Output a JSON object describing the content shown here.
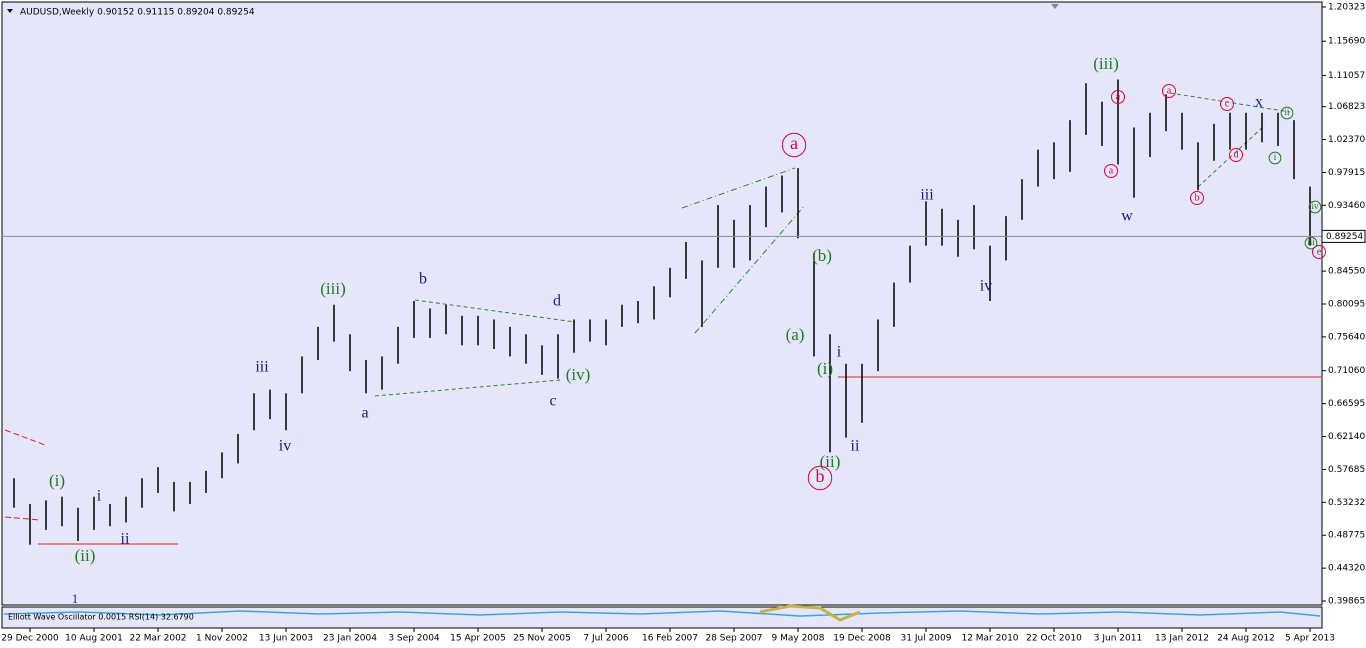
{
  "chart_data": {
    "type": "hilo",
    "title": "AUDUSD,Weekly  0.90152 0.91115 0.89204 0.89254",
    "indicator": "Elliott Wave Oscillator 0.0015  RSI(14) 32.6790",
    "color": "#000000",
    "categories": [
      null,
      "29 Dec 2000",
      null,
      null,
      null,
      "10 Aug 2001",
      null,
      null,
      null,
      "22 Mar 2002",
      null,
      null,
      null,
      "1 Nov 2002",
      null,
      null,
      null,
      "13 Jun 2003",
      null,
      null,
      null,
      "23 Jan 2004",
      null,
      null,
      null,
      "3 Sep 2004",
      null,
      null,
      null,
      "15 Apr 2005",
      null,
      null,
      null,
      "25 Nov 2005",
      null,
      null,
      null,
      "7 Jul 2006",
      null,
      null,
      null,
      "16 Feb 2007",
      null,
      null,
      null,
      "28 Sep 2007",
      null,
      null,
      null,
      "9 May 2008",
      null,
      null,
      null,
      "19 Dec 2008",
      null,
      null,
      null,
      "31 Jul 2009",
      null,
      null,
      null,
      "12 Mar 2010",
      null,
      null,
      null,
      "22 Oct 2010",
      null,
      null,
      null,
      "3 Jun 2011",
      null,
      null,
      null,
      "13 Jan 2012",
      null,
      null,
      null,
      "24 Aug 2012",
      null,
      null,
      null,
      "5 Apr 2013"
    ],
    "high": [
      0.565,
      0.53,
      0.535,
      0.54,
      0.525,
      0.54,
      0.53,
      0.54,
      0.565,
      0.58,
      0.56,
      0.56,
      0.575,
      0.6,
      0.625,
      0.68,
      0.685,
      0.68,
      0.73,
      0.77,
      0.8,
      0.76,
      0.725,
      0.73,
      0.77,
      0.805,
      0.795,
      0.8,
      0.785,
      0.785,
      0.78,
      0.77,
      0.76,
      0.745,
      0.76,
      0.78,
      0.78,
      0.78,
      0.8,
      0.805,
      0.825,
      0.85,
      0.885,
      0.86,
      0.935,
      0.915,
      0.935,
      0.96,
      0.975,
      0.985,
      0.87,
      0.76,
      0.72,
      0.72,
      0.78,
      0.83,
      0.88,
      0.94,
      0.93,
      0.915,
      0.935,
      0.88,
      0.92,
      0.97,
      1.01,
      1.02,
      1.05,
      1.1,
      1.075,
      1.105,
      1.04,
      1.06,
      1.085,
      1.06,
      1.02,
      1.045,
      1.06,
      1.06,
      1.06,
      1.06,
      1.05,
      0.96
    ],
    "low": [
      0.525,
      0.475,
      0.495,
      0.5,
      0.48,
      0.495,
      0.5,
      0.505,
      0.525,
      0.545,
      0.52,
      0.53,
      0.545,
      0.565,
      0.585,
      0.63,
      0.645,
      0.63,
      0.68,
      0.725,
      0.75,
      0.71,
      0.68,
      0.685,
      0.72,
      0.755,
      0.755,
      0.76,
      0.745,
      0.745,
      0.74,
      0.73,
      0.72,
      0.705,
      0.7,
      0.735,
      0.75,
      0.745,
      0.77,
      0.775,
      0.78,
      0.81,
      0.835,
      0.77,
      0.85,
      0.85,
      0.86,
      0.905,
      0.925,
      0.89,
      0.73,
      0.6,
      0.62,
      0.64,
      0.71,
      0.77,
      0.83,
      0.88,
      0.88,
      0.865,
      0.875,
      0.805,
      0.86,
      0.915,
      0.96,
      0.97,
      0.98,
      1.03,
      1.015,
      0.99,
      0.945,
      1.0,
      1.035,
      1.01,
      0.955,
      0.995,
      1.01,
      1.01,
      1.02,
      1.015,
      0.97,
      0.88
    ],
    "ylim": [
      0.39326,
      1.21
    ],
    "yticks": [
      1.20323,
      {
        "value": 1.1569,
        "label": "1.15690"
      },
      1.11057,
      1.06823,
      {
        "value": 1.0237,
        "label": "1.02370"
      },
      0.97915,
      {
        "value": 0.9346,
        "label": "0.93460"
      },
      {
        "value": 0.8455,
        "label": "0.84550"
      },
      0.80095,
      {
        "value": 0.7564,
        "label": "0.75640"
      },
      {
        "value": 0.7106,
        "label": "0.71060"
      },
      0.66595,
      {
        "value": 0.6214,
        "label": "0.62140"
      },
      0.57685,
      0.53232,
      0.48775,
      {
        "value": 0.4432,
        "label": "0.44320"
      },
      0.39865
    ],
    "last_price": 0.89254,
    "annotations": [
      {
        "text": "(i)",
        "color": "#1e7a1e"
      },
      {
        "text": "(ii)",
        "color": "#1e7a1e"
      },
      {
        "text": "(iii)",
        "color": "#1e7a1e"
      },
      {
        "text": "(iv)",
        "color": "#1e7a1e"
      },
      {
        "text": "(a)",
        "color": "#1e7a1e"
      },
      {
        "text": "(b)",
        "color": "#1e7a1e"
      },
      {
        "text": "(i)",
        "color": "#1e7a1e"
      },
      {
        "text": "(ii)",
        "color": "#1e7a1e"
      },
      {
        "text": "(iii)",
        "color": "#1e7a1e"
      },
      {
        "text": "i",
        "color": "#1c1c7c"
      },
      {
        "text": "ii",
        "color": "#1c1c7c"
      },
      {
        "text": "iii",
        "color": "#1c1c7c"
      },
      {
        "text": "iv",
        "color": "#1c1c7c"
      },
      {
        "text": "b",
        "color": "#1c1c7c"
      },
      {
        "text": "a",
        "color": "#1c1c7c"
      },
      {
        "text": "d",
        "color": "#1c1c7c"
      },
      {
        "text": "c",
        "color": "#1c1c7c"
      },
      {
        "text": "i",
        "color": "#1c1c7c"
      },
      {
        "text": "ii",
        "color": "#1c1c7c"
      },
      {
        "text": "iii",
        "color": "#1c1c7c"
      },
      {
        "text": "iv",
        "color": "#1c1c7c"
      },
      {
        "text": "w",
        "color": "#1c1c7c"
      },
      {
        "text": "x",
        "color": "#1c1c7c"
      },
      {
        "text": "1",
        "color": "#1c1c7c"
      },
      {
        "text": "a",
        "color": "#e0003c",
        "circled": true
      },
      {
        "text": "b",
        "color": "#e0003c",
        "circled": true
      },
      {
        "text": "a",
        "color": "#e0003c",
        "circled": true
      },
      {
        "text": "a",
        "color": "#e0003c",
        "circled": true
      },
      {
        "text": "a",
        "color": "#e0003c",
        "circled": true
      },
      {
        "text": "c",
        "color": "#e0003c",
        "circled": true
      },
      {
        "text": "d",
        "color": "#e0003c",
        "circled": true
      },
      {
        "text": "b",
        "color": "#e0003c",
        "circled": true
      },
      {
        "text": "e",
        "color": "#e0003c",
        "circled": true
      },
      {
        "text": "ii",
        "color": "#1e7a1e",
        "circled": true
      },
      {
        "text": "i",
        "color": "#1e7a1e",
        "circled": true
      },
      {
        "text": "iii",
        "color": "#1e7a1e",
        "circled": true
      },
      {
        "text": "iv",
        "color": "#1e7a1e",
        "circled": true
      }
    ]
  }
}
